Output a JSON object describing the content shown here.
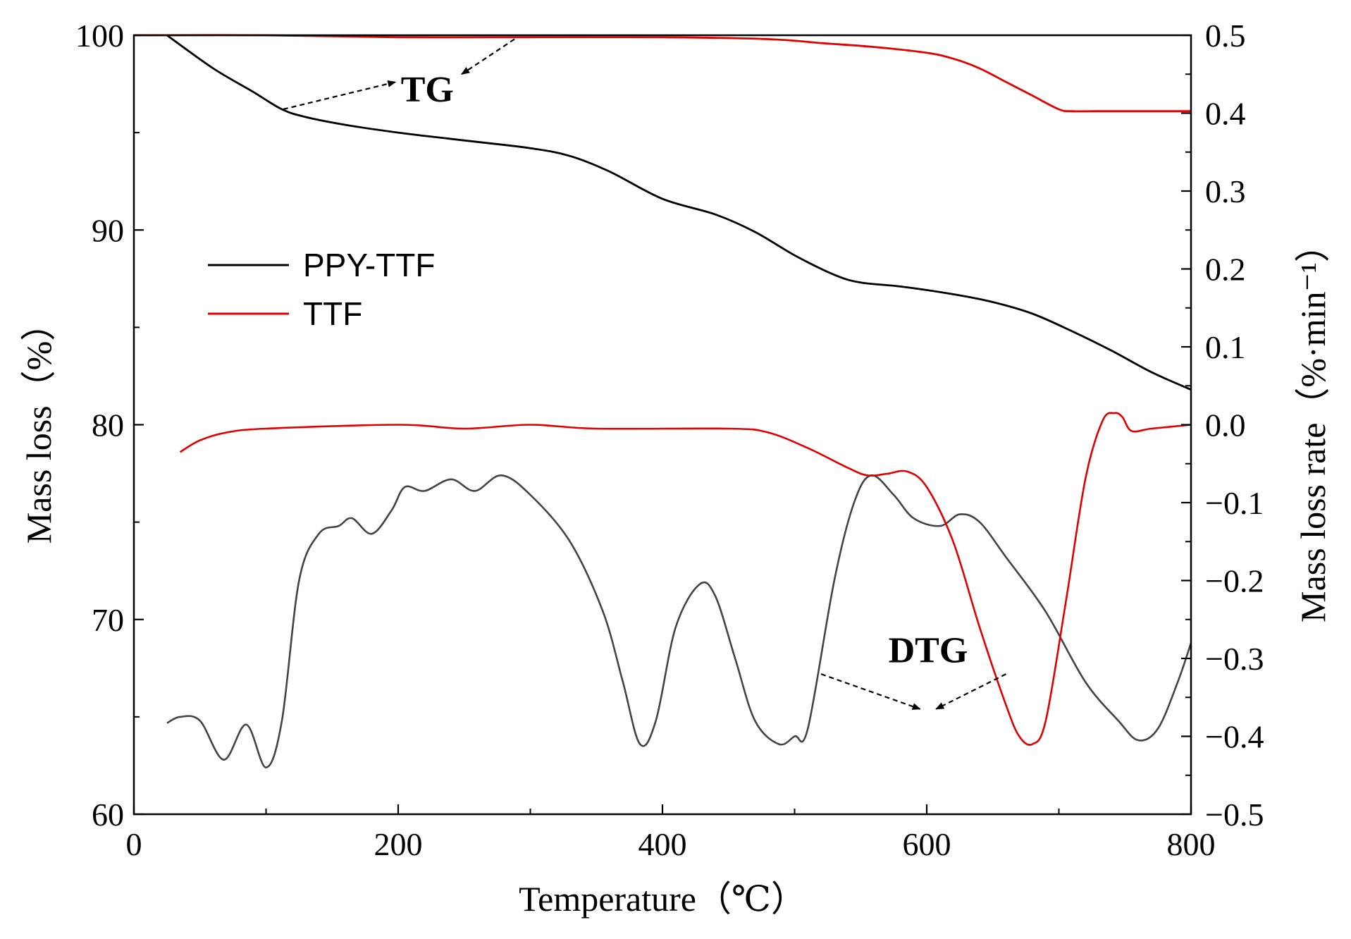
{
  "chart_data": {
    "type": "line",
    "title": "",
    "xlabel": "Temperature（℃）",
    "ylabel_left": "Mass loss（%）",
    "ylabel_right": "Mass loss rate（%·min⁻¹）",
    "xlim": [
      0,
      800
    ],
    "ylim_left": [
      60,
      100
    ],
    "ylim_right": [
      -0.5,
      0.5
    ],
    "x_ticks": [
      "0",
      "200",
      "400",
      "600",
      "800"
    ],
    "y_left_ticks": [
      "60",
      "70",
      "80",
      "90",
      "100"
    ],
    "y_right_ticks": [
      "-0.5",
      "-0.4",
      "-0.3",
      "-0.2",
      "-0.1",
      "0.0",
      "0.1",
      "0.2",
      "0.3",
      "0.4",
      "0.5"
    ],
    "grid": false,
    "legend_position": "upper-left",
    "legend": [
      {
        "name": "PPY-TTF",
        "color": "#000000"
      },
      {
        "name": "TTF",
        "color": "#e00000"
      }
    ],
    "annotations": [
      {
        "text": "TG"
      },
      {
        "text": "DTG"
      }
    ],
    "series": [
      {
        "name": "PPY-TTF",
        "kind": "TG",
        "axis": "left",
        "color": "#000000",
        "x": [
          25,
          60,
          90,
          112,
          130,
          160,
          200,
          250,
          300,
          330,
          360,
          400,
          440,
          470,
          500,
          530,
          550,
          580,
          620,
          650,
          680,
          710,
          740,
          770,
          800
        ],
        "y": [
          100,
          98.3,
          97.1,
          96.2,
          95.8,
          95.4,
          95.0,
          94.6,
          94.2,
          93.8,
          93.0,
          91.6,
          90.8,
          89.9,
          88.7,
          87.7,
          87.3,
          87.1,
          86.7,
          86.3,
          85.7,
          84.8,
          83.8,
          82.7,
          81.8
        ]
      },
      {
        "name": "TTF",
        "kind": "TG",
        "axis": "left",
        "color": "#e00000",
        "x": [
          0,
          100,
          200,
          300,
          400,
          480,
          520,
          560,
          600,
          620,
          640,
          660,
          680,
          700,
          710,
          730,
          800
        ],
        "y": [
          100,
          100,
          99.9,
          99.9,
          99.9,
          99.8,
          99.6,
          99.4,
          99.1,
          98.8,
          98.3,
          97.6,
          96.9,
          96.2,
          96.1,
          96.1,
          96.1
        ]
      },
      {
        "name": "PPY-TTF",
        "kind": "DTG",
        "axis": "right",
        "color": "#444444",
        "x": [
          25,
          35,
          50,
          68,
          85,
          100,
          112,
          125,
          140,
          155,
          165,
          180,
          195,
          205,
          220,
          240,
          258,
          278,
          300,
          330,
          355,
          370,
          383,
          395,
          410,
          428,
          440,
          455,
          470,
          488,
          500,
          510,
          530,
          545,
          558,
          575,
          590,
          610,
          625,
          640,
          660,
          690,
          720,
          745,
          760,
          775,
          790,
          800
        ],
        "y": [
          -0.383,
          -0.375,
          -0.38,
          -0.43,
          -0.385,
          -0.44,
          -0.38,
          -0.2,
          -0.14,
          -0.13,
          -0.12,
          -0.14,
          -0.11,
          -0.08,
          -0.085,
          -0.07,
          -0.085,
          -0.065,
          -0.09,
          -0.15,
          -0.24,
          -0.33,
          -0.41,
          -0.38,
          -0.26,
          -0.205,
          -0.22,
          -0.3,
          -0.38,
          -0.41,
          -0.4,
          -0.39,
          -0.2,
          -0.1,
          -0.065,
          -0.09,
          -0.12,
          -0.13,
          -0.115,
          -0.125,
          -0.17,
          -0.24,
          -0.33,
          -0.38,
          -0.405,
          -0.39,
          -0.33,
          -0.28
        ]
      },
      {
        "name": "TTF",
        "kind": "DTG",
        "axis": "right",
        "color": "#e00000",
        "x": [
          35,
          50,
          70,
          100,
          200,
          250,
          300,
          350,
          450,
          480,
          510,
          540,
          555,
          570,
          585,
          600,
          620,
          640,
          660,
          670,
          680,
          690,
          705,
          720,
          733,
          742,
          748,
          755,
          770,
          800
        ],
        "y": [
          -0.035,
          -0.02,
          -0.01,
          -0.005,
          0.0,
          -0.005,
          0.0,
          -0.005,
          -0.005,
          -0.01,
          -0.03,
          -0.055,
          -0.065,
          -0.063,
          -0.06,
          -0.08,
          -0.15,
          -0.26,
          -0.36,
          -0.4,
          -0.41,
          -0.38,
          -0.23,
          -0.07,
          0.005,
          0.015,
          0.01,
          -0.008,
          -0.005,
          0.0
        ]
      }
    ]
  }
}
